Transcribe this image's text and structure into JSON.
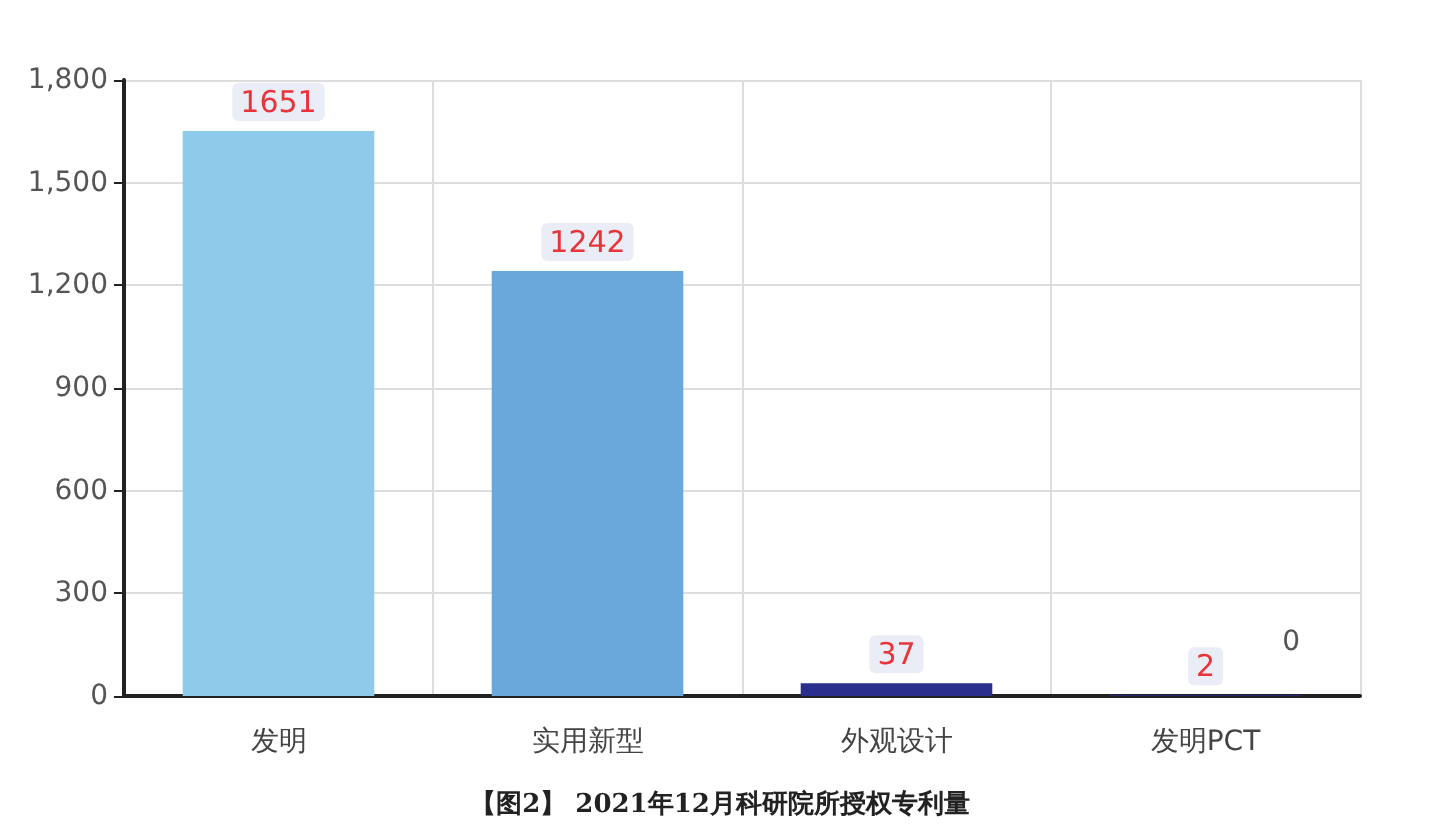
{
  "chart_data": {
    "type": "bar",
    "title": "【图2】 2021年12月科研院所授权专利量",
    "categories": [
      "发明",
      "实用新型",
      "外观设计",
      "发明PCT"
    ],
    "values": [
      1651,
      1242,
      37,
      2
    ],
    "colors": [
      "#8ecbea",
      "#6aa8dc",
      "#2b2e8c",
      "#2b2e8c"
    ],
    "ylim": [
      0,
      1800
    ],
    "yticks": [
      0,
      300,
      600,
      900,
      {
        "value": 1200,
        "label": "1,200"
      },
      {
        "value": 1500,
        "label": "1,500"
      },
      {
        "value": 1800,
        "label": "1,800"
      }
    ],
    "grid": true,
    "data_labels": true,
    "annotations": [
      "0"
    ]
  }
}
